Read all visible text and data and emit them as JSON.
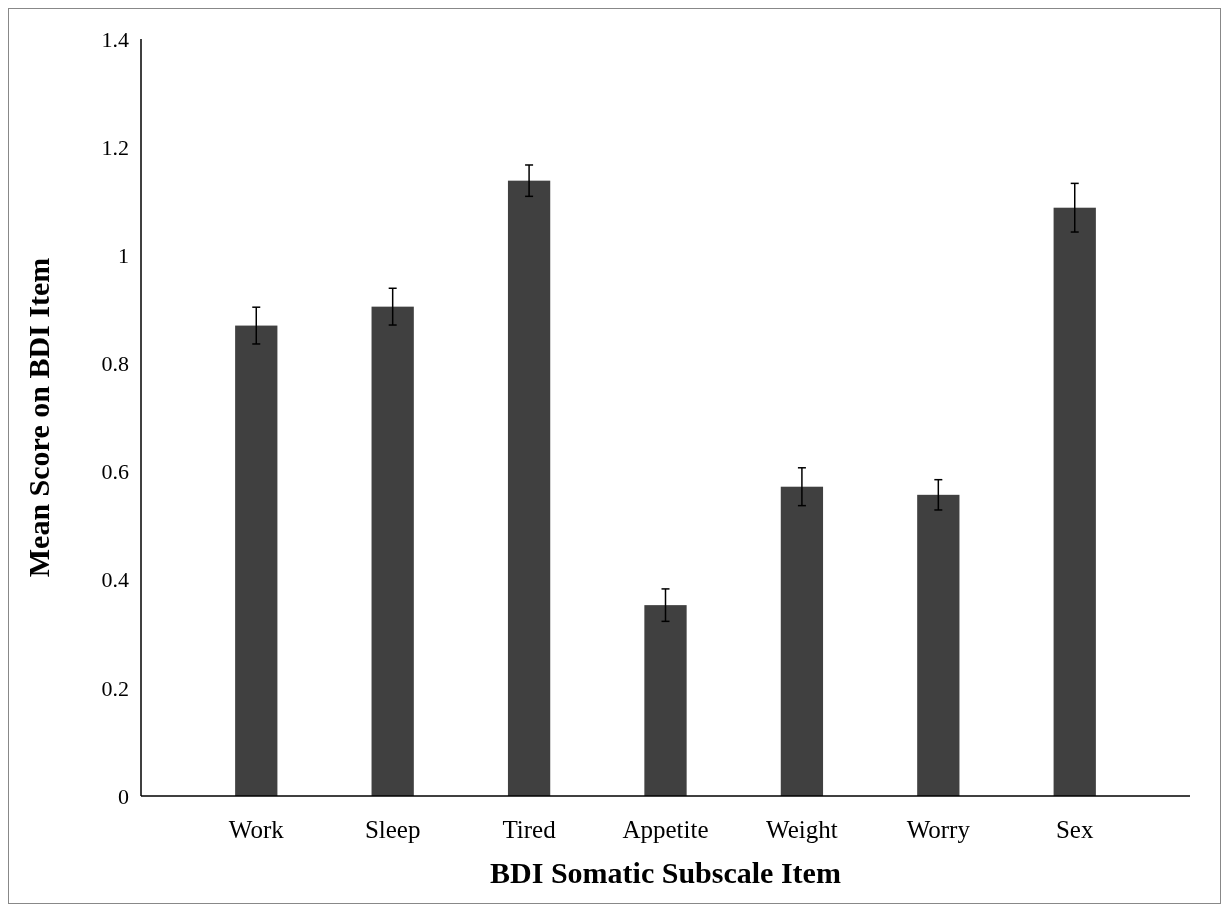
{
  "chart_data": {
    "type": "bar",
    "xlabel": "BDI Somatic Subscale Item",
    "ylabel": "Mean Score on BDI Item",
    "categories": [
      "Work",
      "Sleep",
      "Tired",
      "Appetite",
      "Weight",
      "Worry",
      "Sex"
    ],
    "values": [
      0.87,
      0.905,
      1.138,
      0.353,
      0.572,
      0.557,
      1.088
    ],
    "errors": [
      0.034,
      0.034,
      0.029,
      0.03,
      0.035,
      0.028,
      0.045
    ],
    "color": "#404040",
    "ylim": [
      0,
      1.4
    ],
    "yticks": [
      0,
      0.2,
      0.4,
      0.6,
      0.8,
      1,
      1.2,
      1.4
    ],
    "grid": false
  }
}
